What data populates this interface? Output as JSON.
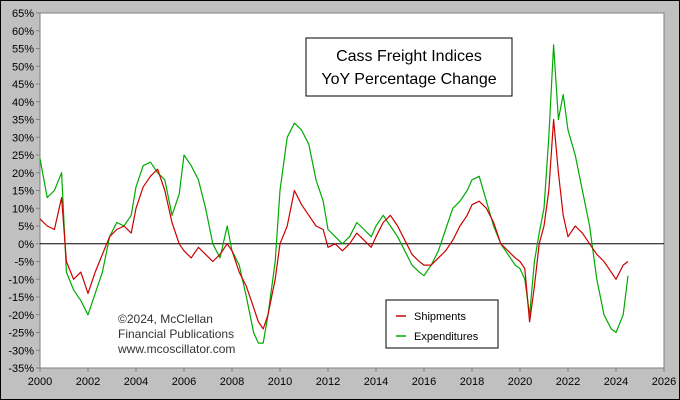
{
  "chart_data": {
    "type": "line",
    "title": "Cass Freight Indices",
    "subtitle": "YoY Percentage Change",
    "xlabel": "",
    "ylabel": "",
    "xlim": [
      2000,
      2026
    ],
    "ylim": [
      -35,
      65
    ],
    "x_ticks": [
      2000,
      2002,
      2004,
      2006,
      2008,
      2010,
      2012,
      2014,
      2016,
      2018,
      2020,
      2022,
      2024,
      2026
    ],
    "x_tick_labels": [
      "2000",
      "2002",
      "2004",
      "2006",
      "2008",
      "2010",
      "2012",
      "2014",
      "2016",
      "2018",
      "2020",
      "2022",
      "2024",
      "2026"
    ],
    "y_ticks": [
      -35,
      -30,
      -25,
      -20,
      -15,
      -10,
      -5,
      0,
      5,
      10,
      15,
      20,
      25,
      30,
      35,
      40,
      45,
      50,
      55,
      60,
      65
    ],
    "y_tick_labels": [
      "-35%",
      "-30%",
      "-25%",
      "-20%",
      "-15%",
      "-10%",
      "-5%",
      "0%",
      "5%",
      "10%",
      "15%",
      "20%",
      "25%",
      "30%",
      "35%",
      "40%",
      "45%",
      "50%",
      "55%",
      "60%",
      "65%"
    ],
    "grid": false,
    "legend": {
      "placement": "bottom-right",
      "entries": [
        "Shipments",
        "Expenditures"
      ]
    },
    "annotations": [
      "©2024, McClellan",
      "Financial Publications",
      "www.mcoscillator.com"
    ],
    "series": [
      {
        "name": "Shipments",
        "color": "#cc0000",
        "x": [
          2000.0,
          2000.3,
          2000.6,
          2000.9,
          2001.1,
          2001.4,
          2001.7,
          2002.0,
          2002.3,
          2002.6,
          2002.9,
          2003.2,
          2003.5,
          2003.8,
          2004.0,
          2004.3,
          2004.6,
          2004.9,
          2005.2,
          2005.5,
          2005.8,
          2006.0,
          2006.3,
          2006.6,
          2006.9,
          2007.2,
          2007.5,
          2007.8,
          2008.0,
          2008.3,
          2008.6,
          2008.9,
          2009.1,
          2009.3,
          2009.5,
          2009.8,
          2010.0,
          2010.3,
          2010.6,
          2010.9,
          2011.2,
          2011.5,
          2011.8,
          2012.0,
          2012.3,
          2012.6,
          2012.9,
          2013.2,
          2013.5,
          2013.8,
          2014.0,
          2014.3,
          2014.6,
          2014.9,
          2015.2,
          2015.5,
          2015.8,
          2016.0,
          2016.3,
          2016.6,
          2016.9,
          2017.2,
          2017.5,
          2017.8,
          2018.0,
          2018.3,
          2018.6,
          2018.9,
          2019.2,
          2019.5,
          2019.8,
          2020.0,
          2020.2,
          2020.4,
          2020.6,
          2020.8,
          2021.0,
          2021.2,
          2021.4,
          2021.6,
          2021.8,
          2022.0,
          2022.3,
          2022.6,
          2022.9,
          2023.2,
          2023.5,
          2023.8,
          2024.0,
          2024.3,
          2024.5
        ],
        "values": [
          7,
          5,
          4,
          13,
          -5,
          -10,
          -8,
          -14,
          -8,
          -3,
          2,
          4,
          5,
          3,
          10,
          16,
          19,
          21,
          15,
          6,
          0,
          -2,
          -4,
          -1,
          -3,
          -5,
          -3,
          0,
          -2,
          -8,
          -12,
          -18,
          -22,
          -24,
          -20,
          -10,
          0,
          5,
          15,
          11,
          8,
          5,
          4,
          -1,
          0,
          -2,
          0,
          3,
          1,
          -1,
          2,
          6,
          8,
          5,
          1,
          -3,
          -5,
          -6,
          -6,
          -4,
          -2,
          1,
          5,
          8,
          11,
          12,
          10,
          6,
          0,
          -2,
          -4,
          -5,
          -7,
          -22,
          -12,
          0,
          5,
          15,
          35,
          20,
          8,
          2,
          5,
          3,
          0,
          -3,
          -5,
          -8,
          -10,
          -6,
          -5
        ]
      },
      {
        "name": "Expenditures",
        "color": "#00aa00",
        "x": [
          2000.0,
          2000.3,
          2000.6,
          2000.9,
          2001.1,
          2001.4,
          2001.7,
          2002.0,
          2002.3,
          2002.6,
          2002.9,
          2003.2,
          2003.5,
          2003.8,
          2004.0,
          2004.3,
          2004.6,
          2004.9,
          2005.2,
          2005.5,
          2005.8,
          2006.0,
          2006.3,
          2006.6,
          2006.9,
          2007.2,
          2007.5,
          2007.8,
          2008.0,
          2008.3,
          2008.6,
          2008.9,
          2009.1,
          2009.3,
          2009.5,
          2009.8,
          2010.0,
          2010.3,
          2010.6,
          2010.9,
          2011.2,
          2011.5,
          2011.8,
          2012.0,
          2012.3,
          2012.6,
          2012.9,
          2013.2,
          2013.5,
          2013.8,
          2014.0,
          2014.3,
          2014.6,
          2014.9,
          2015.2,
          2015.5,
          2015.8,
          2016.0,
          2016.3,
          2016.6,
          2016.9,
          2017.2,
          2017.5,
          2017.8,
          2018.0,
          2018.3,
          2018.6,
          2018.9,
          2019.2,
          2019.5,
          2019.8,
          2020.0,
          2020.2,
          2020.4,
          2020.6,
          2020.8,
          2021.0,
          2021.2,
          2021.4,
          2021.6,
          2021.8,
          2022.0,
          2022.3,
          2022.6,
          2022.9,
          2023.2,
          2023.5,
          2023.8,
          2024.0,
          2024.3,
          2024.5
        ],
        "values": [
          24,
          13,
          15,
          20,
          -8,
          -13,
          -16,
          -20,
          -14,
          -8,
          2,
          6,
          5,
          8,
          16,
          22,
          23,
          20,
          18,
          8,
          14,
          25,
          22,
          18,
          10,
          0,
          -4,
          5,
          -2,
          -6,
          -15,
          -25,
          -28,
          -28,
          -20,
          -5,
          15,
          30,
          34,
          32,
          28,
          18,
          12,
          4,
          2,
          0,
          2,
          6,
          4,
          2,
          5,
          8,
          5,
          2,
          -2,
          -6,
          -8,
          -9,
          -6,
          -2,
          4,
          10,
          12,
          15,
          18,
          19,
          12,
          5,
          0,
          -3,
          -6,
          -7,
          -10,
          -20,
          -5,
          3,
          10,
          30,
          56,
          35,
          42,
          32,
          25,
          15,
          5,
          -10,
          -20,
          -24,
          -25,
          -20,
          -9
        ]
      }
    ]
  }
}
